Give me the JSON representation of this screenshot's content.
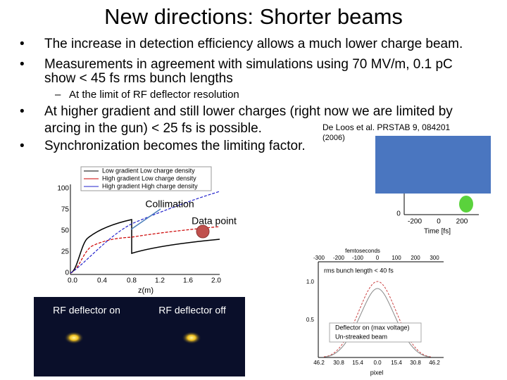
{
  "title": "New directions: Shorter beams",
  "bullets_top": [
    {
      "lines": [
        "The increase in detection efficiency allows a much lower charge beam."
      ]
    },
    {
      "lines": [
        "Measurements in agreement with simulations using 70 MV/m, 0.1 pC",
        "show < 45 fs rms bunch lengths"
      ]
    }
  ],
  "sub_bullet": "At the limit of RF deflector resolution",
  "bullets_bottom": [
    {
      "lines": [
        "At higher gradient and still lower charges (right now we are limited by",
        "arcing in the gun) < 25 fs is possible."
      ]
    },
    {
      "lines": [
        "Synchronization becomes the limiting factor."
      ]
    }
  ],
  "citation": [
    "De Loos et al. PRSTAB 9, 084201",
    "(2006)"
  ],
  "annotations": {
    "collimation": "Collimation",
    "data_point": "Data point"
  },
  "left_figure": {
    "legend": [
      "Low gradient Low charge density",
      "High gradient Low charge density",
      "High gradient High charge density"
    ],
    "yticks": [
      "100",
      "75",
      "50",
      "25",
      "0"
    ],
    "xticks": [
      "0.0",
      "0.4",
      "0.8",
      "1.2",
      "1.6",
      "2.0"
    ],
    "xlabel": "z(m)"
  },
  "images": [
    "RF deflector on",
    "RF deflector off"
  ],
  "top_right_figure": {
    "ytick": "0",
    "xticks": [
      "-200",
      "0",
      "200"
    ],
    "xlabel": "Time [fs]"
  },
  "bottom_right_figure": {
    "top_label": "femtoseconds",
    "top_ticks": [
      "-300",
      "-200",
      "-100",
      "0",
      "100",
      "200",
      "300"
    ],
    "note": "rms bunch length < 40 fs",
    "yticks": [
      "1.0",
      "0.5"
    ],
    "legend": [
      "Deflector on (max voltage)",
      "Un-streaked beam"
    ],
    "xticks": [
      "46.2",
      "30.8",
      "15.4",
      "0.0",
      "15.4",
      "30.8",
      "46.2"
    ],
    "xlabel": "pixel"
  }
}
